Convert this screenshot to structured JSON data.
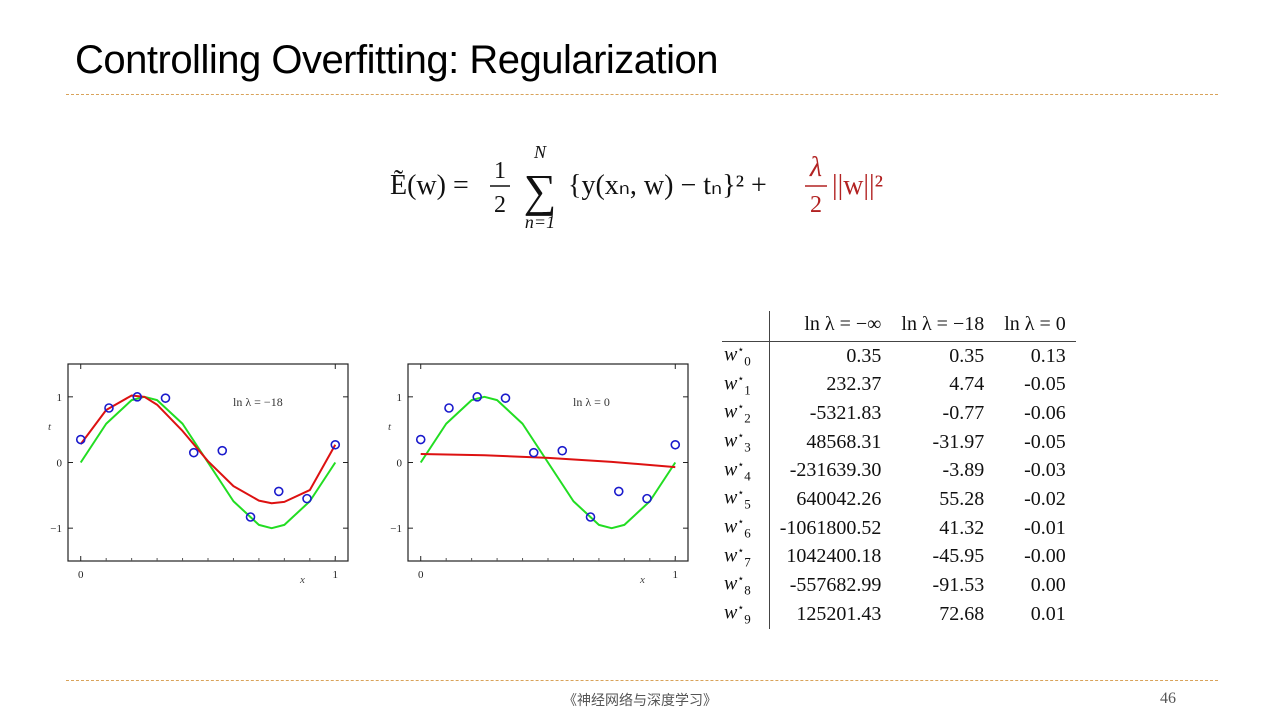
{
  "slide": {
    "title": "Controlling Overfitting: Regularization",
    "footer": "《神经网络与深度学习》",
    "page_number": "46"
  },
  "formula": {
    "lhs": "Ẽ(w) =",
    "half_num": "1",
    "half_den": "2",
    "sum_top": "N",
    "sum_bottom": "n=1",
    "body": "{y(xₙ, w) − tₙ}² +",
    "lambda_num": "λ",
    "lambda_den": "2",
    "norm": "||w||²",
    "colors": {
      "regularizer": "#b22222",
      "text": "#111111"
    }
  },
  "chart_data": [
    {
      "type": "line",
      "annotation": "ln λ = −18",
      "xlabel": "x",
      "ylabel": "t",
      "xlim": [
        -0.05,
        1.05
      ],
      "ylim": [
        -1.5,
        1.5
      ],
      "xticks": [
        "0",
        "1"
      ],
      "yticks": [
        "−1",
        "0",
        "1"
      ],
      "points": {
        "x": [
          0.0,
          0.111,
          0.222,
          0.333,
          0.444,
          0.556,
          0.667,
          0.778,
          0.889,
          1.0
        ],
        "y": [
          0.35,
          0.83,
          1.0,
          0.98,
          0.15,
          0.18,
          -0.83,
          -0.44,
          -0.55,
          0.27
        ]
      },
      "series": [
        {
          "kind": "true-function",
          "color": "#22dd22",
          "x": [
            0.0,
            0.1,
            0.2,
            0.25,
            0.3,
            0.4,
            0.5,
            0.6,
            0.7,
            0.75,
            0.8,
            0.9,
            1.0
          ],
          "y": [
            0.0,
            0.59,
            0.95,
            1.0,
            0.95,
            0.59,
            0.0,
            -0.59,
            -0.95,
            -1.0,
            -0.95,
            -0.59,
            0.0
          ]
        },
        {
          "kind": "fit",
          "color": "#dd1111",
          "x": [
            0.0,
            0.1,
            0.2,
            0.25,
            0.3,
            0.4,
            0.5,
            0.6,
            0.7,
            0.75,
            0.8,
            0.9,
            1.0
          ],
          "y": [
            0.28,
            0.8,
            1.02,
            1.0,
            0.88,
            0.48,
            0.02,
            -0.36,
            -0.58,
            -0.62,
            -0.6,
            -0.42,
            0.27
          ]
        }
      ]
    },
    {
      "type": "line",
      "annotation": "ln λ = 0",
      "xlabel": "x",
      "ylabel": "t",
      "xlim": [
        -0.05,
        1.05
      ],
      "ylim": [
        -1.5,
        1.5
      ],
      "xticks": [
        "0",
        "1"
      ],
      "yticks": [
        "−1",
        "0",
        "1"
      ],
      "points": {
        "x": [
          0.0,
          0.111,
          0.222,
          0.333,
          0.444,
          0.556,
          0.667,
          0.778,
          0.889,
          1.0
        ],
        "y": [
          0.35,
          0.83,
          1.0,
          0.98,
          0.15,
          0.18,
          -0.83,
          -0.44,
          -0.55,
          0.27
        ]
      },
      "series": [
        {
          "kind": "true-function",
          "color": "#22dd22",
          "x": [
            0.0,
            0.1,
            0.2,
            0.25,
            0.3,
            0.4,
            0.5,
            0.6,
            0.7,
            0.75,
            0.8,
            0.9,
            1.0
          ],
          "y": [
            0.0,
            0.59,
            0.95,
            1.0,
            0.95,
            0.59,
            0.0,
            -0.59,
            -0.95,
            -1.0,
            -0.95,
            -0.59,
            0.0
          ]
        },
        {
          "kind": "fit",
          "color": "#dd1111",
          "x": [
            0.0,
            0.25,
            0.5,
            0.75,
            1.0
          ],
          "y": [
            0.13,
            0.11,
            0.07,
            0.01,
            -0.07
          ]
        }
      ]
    }
  ],
  "table": {
    "headers": [
      "",
      "ln λ = −∞",
      "ln λ = −18",
      "ln λ = 0"
    ],
    "rows": [
      {
        "sub": "0",
        "values": [
          "0.35",
          "0.35",
          "0.13"
        ]
      },
      {
        "sub": "1",
        "values": [
          "232.37",
          "4.74",
          "-0.05"
        ]
      },
      {
        "sub": "2",
        "values": [
          "-5321.83",
          "-0.77",
          "-0.06"
        ]
      },
      {
        "sub": "3",
        "values": [
          "48568.31",
          "-31.97",
          "-0.05"
        ]
      },
      {
        "sub": "4",
        "values": [
          "-231639.30",
          "-3.89",
          "-0.03"
        ]
      },
      {
        "sub": "5",
        "values": [
          "640042.26",
          "55.28",
          "-0.02"
        ]
      },
      {
        "sub": "6",
        "values": [
          "-1061800.52",
          "41.32",
          "-0.01"
        ]
      },
      {
        "sub": "7",
        "values": [
          "1042400.18",
          "-45.95",
          "-0.00"
        ]
      },
      {
        "sub": "8",
        "values": [
          "-557682.99",
          "-91.53",
          "0.00"
        ]
      },
      {
        "sub": "9",
        "values": [
          "125201.43",
          "72.68",
          "0.01"
        ]
      }
    ]
  }
}
